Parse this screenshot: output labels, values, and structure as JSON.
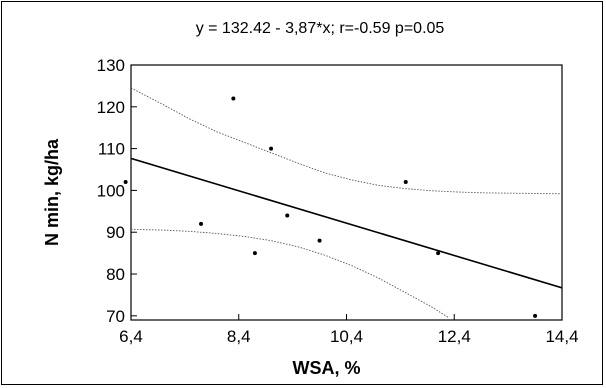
{
  "chart_data": {
    "type": "scatter",
    "title": "y = 132.42 - 3,87*x;  r=-0.59 p=0.05",
    "xlabel": "WSA, %",
    "ylabel": "N min, kg/ha",
    "xlim": [
      6.4,
      14.4
    ],
    "ylim": [
      69,
      130
    ],
    "x_ticks": [
      6.4,
      8.4,
      10.4,
      12.4,
      14.4
    ],
    "x_tick_labels": [
      "6,4",
      "8,4",
      "10,4",
      "12,4",
      "14,4"
    ],
    "y_ticks": [
      70,
      80,
      90,
      100,
      110,
      120,
      130
    ],
    "y_tick_labels": [
      "70",
      "80",
      "90",
      "100",
      "110",
      "120",
      "130"
    ],
    "grid": false,
    "points": [
      {
        "x": 6.3,
        "y": 102
      },
      {
        "x": 7.7,
        "y": 92
      },
      {
        "x": 8.3,
        "y": 122
      },
      {
        "x": 8.7,
        "y": 85
      },
      {
        "x": 9.0,
        "y": 110
      },
      {
        "x": 9.3,
        "y": 94
      },
      {
        "x": 9.9,
        "y": 88
      },
      {
        "x": 11.5,
        "y": 102
      },
      {
        "x": 12.1,
        "y": 85
      },
      {
        "x": 13.9,
        "y": 70
      }
    ],
    "regression": {
      "intercept": 132.42,
      "slope": -3.87,
      "x_range": [
        6.4,
        14.4
      ]
    },
    "confidence_upper": [
      {
        "x": 6.4,
        "y": 124.5
      },
      {
        "x": 7.0,
        "y": 120.5
      },
      {
        "x": 7.5,
        "y": 117
      },
      {
        "x": 8.0,
        "y": 114
      },
      {
        "x": 8.5,
        "y": 111.5
      },
      {
        "x": 9.0,
        "y": 109
      },
      {
        "x": 9.5,
        "y": 106.5
      },
      {
        "x": 10.0,
        "y": 104.2
      },
      {
        "x": 10.5,
        "y": 102.5
      },
      {
        "x": 11.0,
        "y": 101.2
      },
      {
        "x": 11.5,
        "y": 100.4
      },
      {
        "x": 12.0,
        "y": 99.9
      },
      {
        "x": 12.5,
        "y": 99.6
      },
      {
        "x": 13.0,
        "y": 99.4
      },
      {
        "x": 14.4,
        "y": 99.2
      }
    ],
    "confidence_lower": [
      {
        "x": 6.4,
        "y": 90.7
      },
      {
        "x": 7.0,
        "y": 90.5
      },
      {
        "x": 7.5,
        "y": 90.2
      },
      {
        "x": 8.0,
        "y": 89.7
      },
      {
        "x": 8.5,
        "y": 89
      },
      {
        "x": 9.0,
        "y": 88
      },
      {
        "x": 9.5,
        "y": 86.5
      },
      {
        "x": 10.0,
        "y": 84.5
      },
      {
        "x": 10.5,
        "y": 82
      },
      {
        "x": 11.0,
        "y": 79
      },
      {
        "x": 11.5,
        "y": 75.5
      },
      {
        "x": 12.0,
        "y": 72
      },
      {
        "x": 12.3,
        "y": 69.5
      }
    ],
    "colors": {
      "points": "#000000",
      "line": "#000000",
      "confidence": "#555555"
    }
  }
}
